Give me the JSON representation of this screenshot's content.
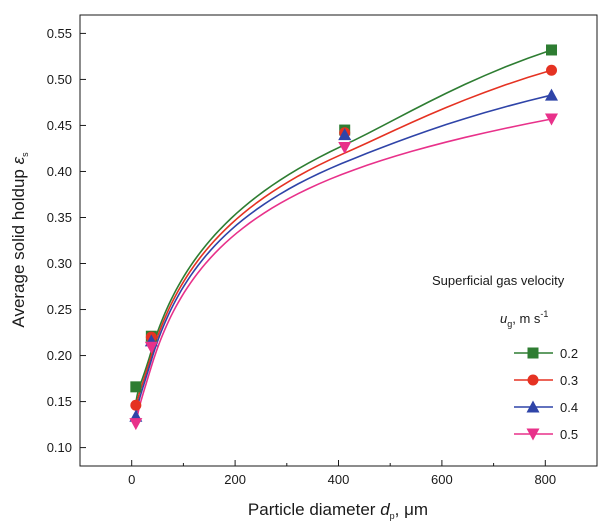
{
  "chart_data": {
    "type": "scatter",
    "xlabel": {
      "main": "Particle diameter ",
      "italic": "d",
      "sub": "p",
      "unit": ", μm"
    },
    "ylabel": {
      "main": "Average solid holdup ",
      "italic": "ε",
      "sub": "s"
    },
    "xlim": [
      -100,
      900
    ],
    "ylim": [
      0.08,
      0.57
    ],
    "x_ticks": [
      0,
      200,
      400,
      600,
      800
    ],
    "y_ticks": [
      0.1,
      0.15,
      0.2,
      0.25,
      0.3,
      0.35,
      0.4,
      0.45,
      0.5,
      0.55
    ],
    "x_tick_labels": [
      "0",
      "200",
      "400",
      "600",
      "800"
    ],
    "y_tick_labels": [
      "0.10",
      "0.15",
      "0.20",
      "0.25",
      "0.30",
      "0.35",
      "0.40",
      "0.45",
      "0.50",
      "0.55"
    ],
    "grid": false,
    "legend": {
      "placement": "bottom-right",
      "title": "Superficial gas velocity",
      "subtitle": {
        "italic": "u",
        "sub": "g",
        "unit": ", m s",
        "sup": "-1"
      }
    },
    "x": [
      8,
      38,
      412,
      812
    ],
    "series": [
      {
        "name": "0.2",
        "color": "#2e7d32",
        "marker": "square",
        "values": [
          0.166,
          0.221,
          0.445,
          0.532
        ],
        "fit": [
          0.148,
          0.205,
          0.429,
          0.532
        ]
      },
      {
        "name": "0.3",
        "color": "#e53222",
        "marker": "circle",
        "values": [
          0.146,
          0.22,
          0.442,
          0.51
        ],
        "fit": [
          0.14,
          0.2,
          0.42,
          0.51
        ]
      },
      {
        "name": "0.4",
        "color": "#2f44a8",
        "marker": "triangle",
        "values": [
          0.134,
          0.216,
          0.44,
          0.483
        ],
        "fit": [
          0.132,
          0.195,
          0.41,
          0.483
        ]
      },
      {
        "name": "0.5",
        "color": "#e8318a",
        "marker": "triangle-down",
        "values": [
          0.126,
          0.209,
          0.426,
          0.457
        ],
        "fit": [
          0.122,
          0.188,
          0.398,
          0.457
        ]
      }
    ]
  }
}
